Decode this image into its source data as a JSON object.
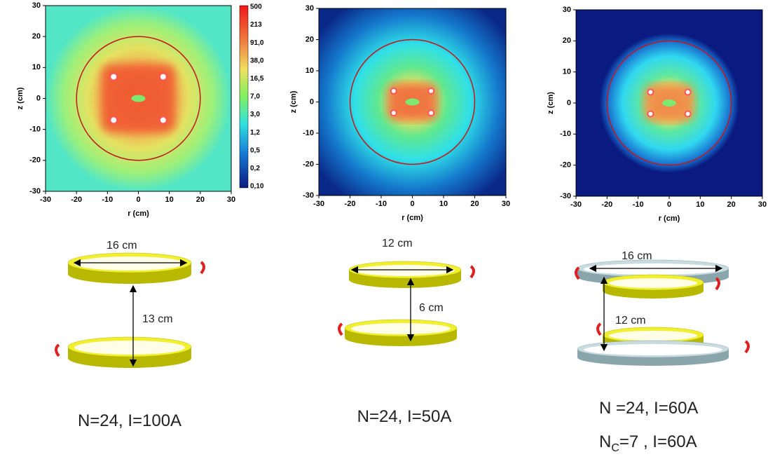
{
  "xlim": [
    -30,
    30
  ],
  "ylim": [
    -30,
    30
  ],
  "panels": [
    {
      "x_label": "r (cm)",
      "y_label": "z (cm)",
      "xticks": [
        -30,
        -20,
        -10,
        0,
        10,
        20,
        30
      ],
      "yticks": [
        -30,
        -20,
        -10,
        0,
        10,
        20,
        30
      ],
      "coil_labels": [
        "16 cm",
        "13 cm"
      ],
      "caption": [
        "N=24, I=100A"
      ]
    },
    {
      "x_label": "r (cm)",
      "y_label": "z (cm)",
      "xticks": [
        -30,
        -20,
        -10,
        0,
        10,
        20,
        30
      ],
      "yticks": [
        -30,
        -20,
        -10,
        0,
        10,
        20,
        30
      ],
      "coil_labels": [
        "12 cm",
        "6 cm"
      ],
      "caption": [
        "N=24, I=50A"
      ]
    },
    {
      "x_label": "r (cm)",
      "y_label": "z (cm)",
      "xticks": [
        -30,
        -20,
        -10,
        0,
        10,
        20,
        30
      ],
      "yticks": [
        -30,
        -20,
        -10,
        0,
        10,
        20,
        30
      ],
      "coil_labels": [
        "16 cm",
        "12 cm"
      ],
      "caption": [
        "N =24, I=60A"
      ],
      "caption_line2": [
        "N",
        "C",
        "=7  , I=60A"
      ]
    }
  ],
  "colorbar": {
    "labels": [
      "500",
      "213",
      "91,0",
      "38,0",
      "16,5",
      "7,0",
      "3,0",
      "1,2",
      "0,5",
      "0,2",
      "0,10"
    ]
  }
}
